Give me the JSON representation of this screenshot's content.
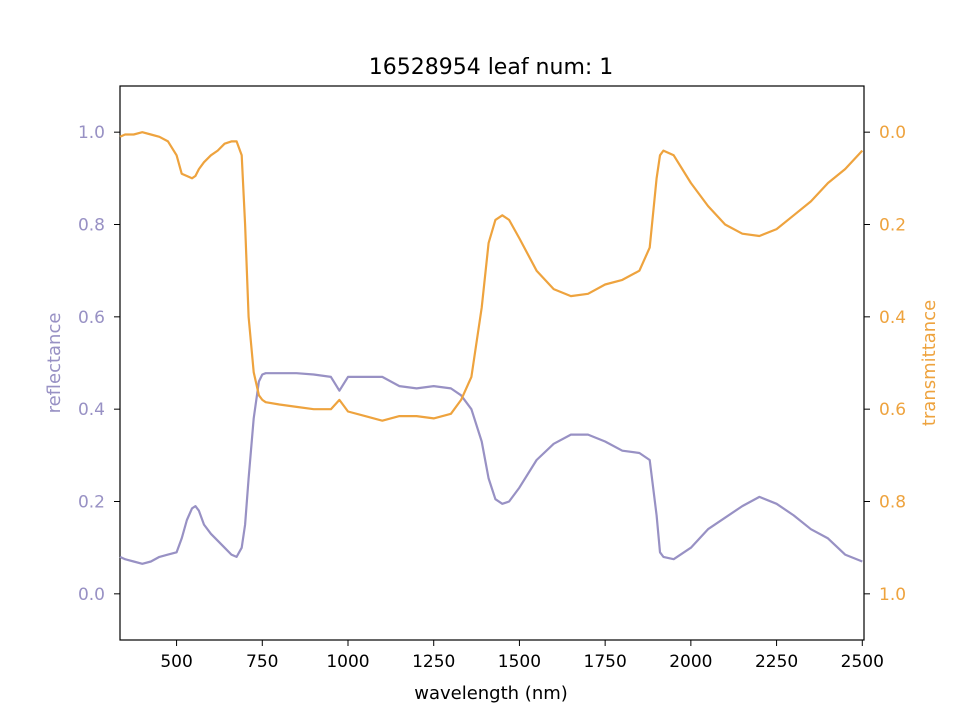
{
  "chart_data": {
    "type": "line",
    "title": "16528954 leaf num: 1",
    "xlabel": "wavelength (nm)",
    "ylabel_left": "reflectance",
    "ylabel_right": "transmittance",
    "xlim": [
      335,
      2505
    ],
    "ylim_left": [
      -0.1,
      1.1
    ],
    "ylim_right": [
      1.1,
      -0.1
    ],
    "right_axis_inverted": true,
    "x_ticks": [
      "500",
      "750",
      "1000",
      "1250",
      "1500",
      "1750",
      "2000",
      "2250",
      "2500"
    ],
    "y_ticks_left": [
      "0.0",
      "0.2",
      "0.4",
      "0.6",
      "0.8",
      "1.0"
    ],
    "y_ticks_right": [
      "0.0",
      "0.2",
      "0.4",
      "0.6",
      "0.8",
      "1.0"
    ],
    "grid": false,
    "colors": {
      "reflectance": "#9891c4",
      "transmittance": "#eea33e"
    },
    "series": [
      {
        "name": "reflectance",
        "axis": "left",
        "x": [
          335,
          350,
          375,
          400,
          425,
          450,
          475,
          500,
          515,
          530,
          545,
          555,
          565,
          580,
          600,
          620,
          640,
          660,
          675,
          690,
          700,
          710,
          725,
          740,
          750,
          760,
          800,
          850,
          900,
          950,
          975,
          1000,
          1050,
          1100,
          1150,
          1200,
          1250,
          1300,
          1330,
          1360,
          1390,
          1410,
          1430,
          1450,
          1470,
          1500,
          1550,
          1600,
          1650,
          1700,
          1750,
          1800,
          1850,
          1880,
          1900,
          1910,
          1920,
          1950,
          2000,
          2050,
          2100,
          2150,
          2200,
          2250,
          2300,
          2350,
          2400,
          2450,
          2500
        ],
        "values": [
          0.08,
          0.075,
          0.07,
          0.065,
          0.07,
          0.08,
          0.085,
          0.09,
          0.12,
          0.16,
          0.185,
          0.19,
          0.18,
          0.15,
          0.13,
          0.115,
          0.1,
          0.085,
          0.08,
          0.1,
          0.15,
          0.25,
          0.38,
          0.46,
          0.475,
          0.478,
          0.478,
          0.478,
          0.475,
          0.47,
          0.44,
          0.47,
          0.47,
          0.47,
          0.45,
          0.445,
          0.45,
          0.445,
          0.43,
          0.4,
          0.33,
          0.25,
          0.205,
          0.195,
          0.2,
          0.23,
          0.29,
          0.325,
          0.345,
          0.345,
          0.33,
          0.31,
          0.305,
          0.29,
          0.17,
          0.09,
          0.08,
          0.075,
          0.1,
          0.14,
          0.165,
          0.19,
          0.21,
          0.195,
          0.17,
          0.14,
          0.12,
          0.085,
          0.07
        ]
      },
      {
        "name": "transmittance",
        "axis": "right",
        "x": [
          335,
          350,
          375,
          400,
          425,
          450,
          475,
          500,
          515,
          530,
          545,
          555,
          565,
          580,
          600,
          620,
          640,
          660,
          675,
          690,
          700,
          710,
          725,
          740,
          750,
          760,
          800,
          850,
          900,
          950,
          975,
          1000,
          1050,
          1100,
          1150,
          1200,
          1250,
          1300,
          1330,
          1360,
          1390,
          1410,
          1430,
          1450,
          1470,
          1500,
          1550,
          1600,
          1650,
          1700,
          1750,
          1800,
          1850,
          1880,
          1900,
          1910,
          1920,
          1950,
          2000,
          2050,
          2100,
          2150,
          2200,
          2250,
          2300,
          2350,
          2400,
          2450,
          2500
        ],
        "values": [
          0.01,
          0.005,
          0.005,
          0.0,
          0.005,
          0.01,
          0.02,
          0.05,
          0.09,
          0.095,
          0.1,
          0.095,
          0.08,
          0.065,
          0.05,
          0.04,
          0.025,
          0.02,
          0.02,
          0.05,
          0.2,
          0.4,
          0.52,
          0.57,
          0.58,
          0.585,
          0.59,
          0.595,
          0.6,
          0.6,
          0.58,
          0.605,
          0.615,
          0.625,
          0.615,
          0.615,
          0.62,
          0.61,
          0.58,
          0.53,
          0.38,
          0.24,
          0.19,
          0.18,
          0.19,
          0.23,
          0.3,
          0.34,
          0.355,
          0.35,
          0.33,
          0.32,
          0.3,
          0.25,
          0.1,
          0.05,
          0.04,
          0.05,
          0.11,
          0.16,
          0.2,
          0.22,
          0.225,
          0.21,
          0.18,
          0.15,
          0.11,
          0.08,
          0.04
        ]
      }
    ]
  }
}
